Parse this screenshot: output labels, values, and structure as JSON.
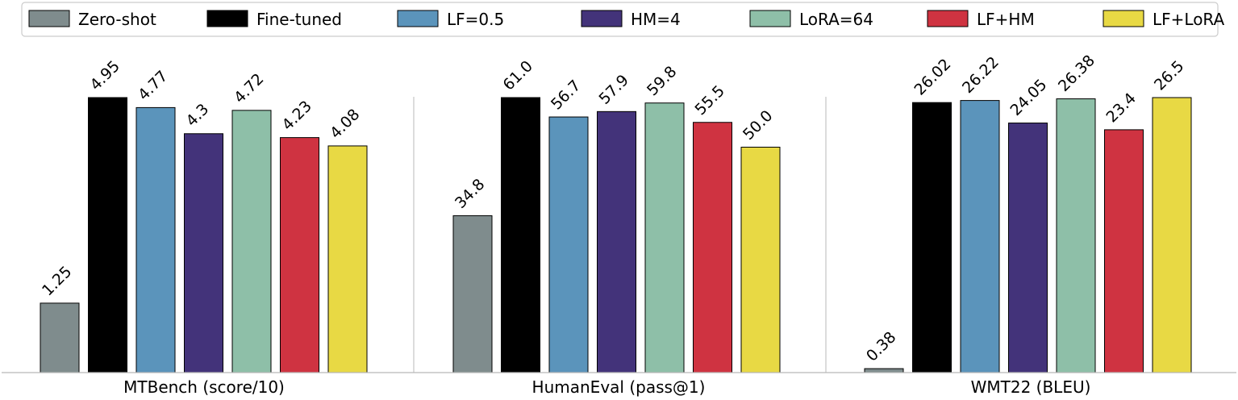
{
  "chart_data": {
    "type": "bar",
    "legend": {
      "placement": "top",
      "columns": 7
    },
    "series": [
      {
        "name": "Zero-shot",
        "color": "#7f8c8d"
      },
      {
        "name": "Fine-tuned",
        "color": "#000000"
      },
      {
        "name": "LF=0.5",
        "color": "#5b94bb"
      },
      {
        "name": "HM=4",
        "color": "#43337a"
      },
      {
        "name": "LoRA=64",
        "color": "#8ebfa8"
      },
      {
        "name": "LF+HM",
        "color": "#cf3341"
      },
      {
        "name": "LF+LoRA",
        "color": "#e8d944"
      }
    ],
    "groups": [
      {
        "label": "MTBench (score/10)",
        "values": [
          1.25,
          4.95,
          4.77,
          4.3,
          4.72,
          4.23,
          4.08
        ],
        "labels": [
          "1.25",
          "4.95",
          "4.77",
          "4.3",
          "4.72",
          "4.23",
          "4.08"
        ],
        "ylim": [
          0,
          4.95
        ]
      },
      {
        "label": "HumanEval (pass@1)",
        "values": [
          34.8,
          61.0,
          56.7,
          57.9,
          59.8,
          55.5,
          50.0
        ],
        "labels": [
          "34.8",
          "61.0",
          "56.7",
          "57.9",
          "59.8",
          "55.5",
          "50.0"
        ],
        "ylim": [
          0,
          61.0
        ]
      },
      {
        "label": "WMT22 (BLEU)",
        "values": [
          0.38,
          26.02,
          26.22,
          24.05,
          26.38,
          23.4,
          26.5
        ],
        "labels": [
          "0.38",
          "26.02",
          "26.22",
          "24.05",
          "26.38",
          "23.4",
          "26.5"
        ],
        "ylim": [
          0,
          26.5
        ]
      }
    ],
    "grid": false
  }
}
